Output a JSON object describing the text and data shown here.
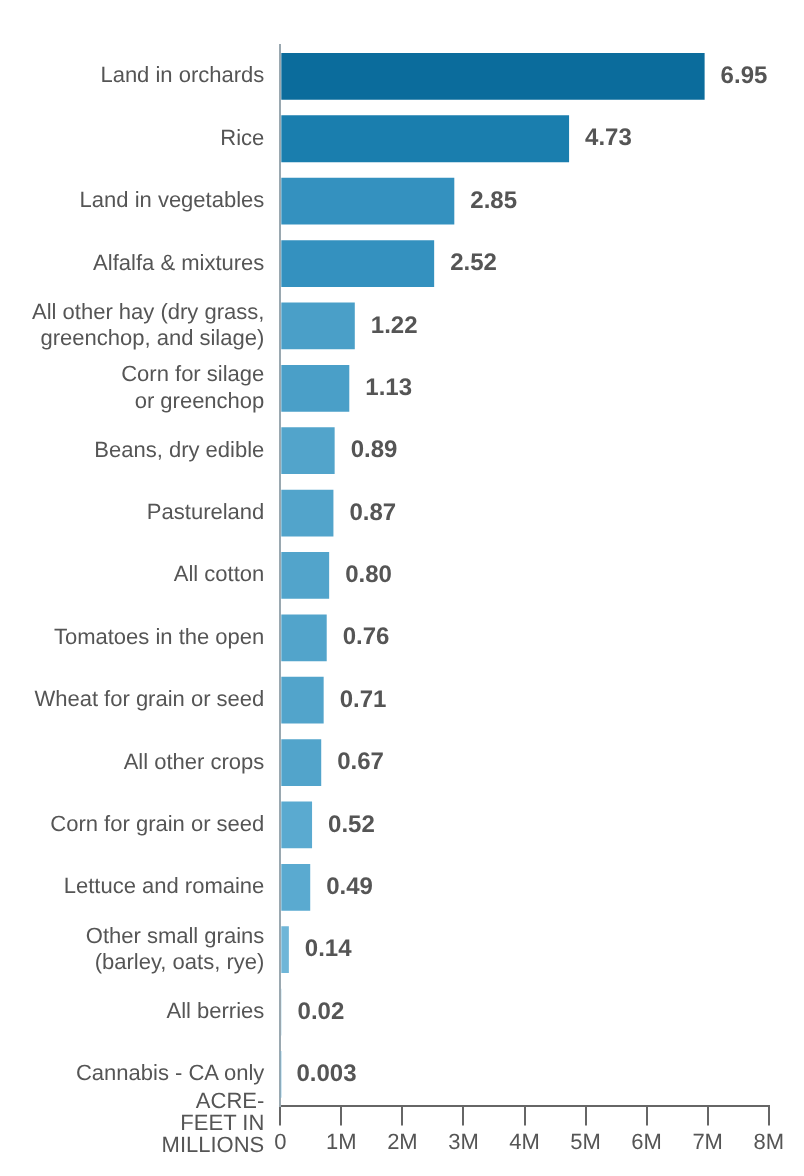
{
  "chart_data": {
    "type": "bar",
    "orientation": "horizontal",
    "xlabel": "ACRE-\nFEET IN\nMILLIONS",
    "categories": [
      "Land in orchards",
      "Rice",
      "Land in vegetables",
      "Alfalfa & mixtures",
      "All other hay (dry grass,\ngreenchop, and silage)",
      "Corn for silage\nor greenchop",
      "Beans, dry edible",
      "Pastureland",
      "All cotton",
      "Tomatoes in the open",
      "Wheat for grain or seed",
      "All other crops",
      "Corn for grain or seed",
      "Lettuce and romaine",
      "Other small grains\n(barley, oats, rye)",
      "All berries",
      "Cannabis - CA only"
    ],
    "values": [
      6.95,
      4.73,
      2.85,
      2.52,
      1.22,
      1.13,
      0.89,
      0.87,
      0.8,
      0.76,
      0.71,
      0.67,
      0.52,
      0.49,
      0.14,
      0.02,
      0.003
    ],
    "value_labels": [
      "6.95",
      "4.73",
      "2.85",
      "2.52",
      "1.22",
      "1.13",
      "0.89",
      "0.87",
      "0.80",
      "0.76",
      "0.71",
      "0.67",
      "0.52",
      "0.49",
      "0.14",
      "0.02",
      "0.003"
    ],
    "colors": [
      "#0b6c9c",
      "#1a7eae",
      "#3491bf",
      "#3491bf",
      "#4a9fc8",
      "#4a9fc8",
      "#52a4cb",
      "#52a4cb",
      "#52a4cb",
      "#52a4cb",
      "#52a4cb",
      "#52a4cb",
      "#5aaad0",
      "#5aaad0",
      "#6fb6d8",
      "#6fb6d8",
      "#6fb6d8"
    ],
    "xlim": [
      0,
      8
    ],
    "xticks": [
      0,
      {
        "value": 1,
        "label": "1M"
      },
      {
        "value": 2,
        "label": "2M"
      },
      {
        "value": 3,
        "label": "3M"
      },
      {
        "value": 4,
        "label": "4M"
      },
      {
        "value": 5,
        "label": "5M"
      },
      {
        "value": 6,
        "label": "6M"
      },
      {
        "value": 7,
        "label": "7M"
      },
      {
        "value": 8,
        "label": "8M"
      }
    ],
    "grid": false,
    "legend": false
  }
}
